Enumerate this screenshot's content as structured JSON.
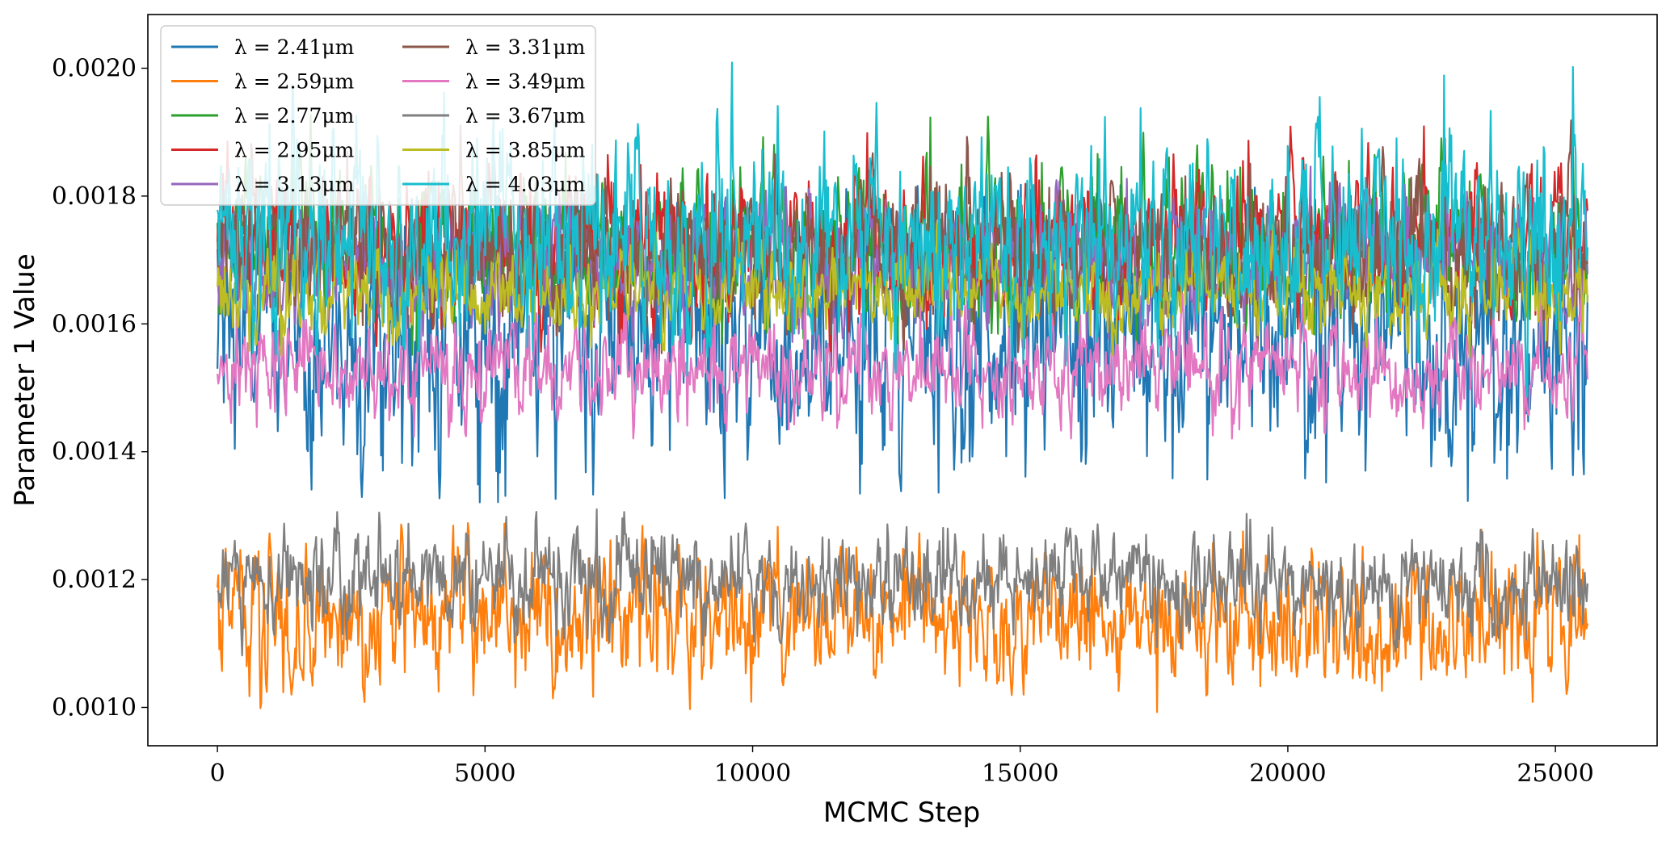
{
  "chart_data": {
    "type": "line",
    "title": "",
    "xlabel": "MCMC Step",
    "ylabel": "Parameter 1 Value",
    "xlim": [
      -1300,
      26900
    ],
    "ylim": [
      0.00094,
      0.002084
    ],
    "xticks": [
      0,
      5000,
      10000,
      15000,
      20000,
      25000
    ],
    "xtick_labels": [
      "0",
      "5000",
      "10000",
      "15000",
      "20000",
      "25000"
    ],
    "yticks": [
      0.001,
      0.0012,
      0.0014,
      0.0016,
      0.0018,
      0.002
    ],
    "ytick_labels": [
      "0.0010",
      "0.0012",
      "0.0014",
      "0.0016",
      "0.0018",
      "0.0020"
    ],
    "grid": false,
    "legend_position": "top-left",
    "legend_columns": 2,
    "n_steps": 25600,
    "series": [
      {
        "name": "λ = 2.41μm",
        "color": "#1f77b4",
        "mean": 0.001585,
        "sd": 0.0001,
        "range": [
          0.00132,
          0.00182
        ]
      },
      {
        "name": "λ = 2.59μm",
        "color": "#ff7f0e",
        "mean": 0.00114,
        "sd": 5.5e-05,
        "range": [
          0.00099,
          0.00129
        ]
      },
      {
        "name": "λ = 2.77μm",
        "color": "#2ca02c",
        "mean": 0.00172,
        "sd": 6e-05,
        "range": [
          0.00155,
          0.00193
        ]
      },
      {
        "name": "λ = 2.95μm",
        "color": "#d62728",
        "mean": 0.00172,
        "sd": 5.5e-05,
        "range": [
          0.00155,
          0.00191
        ]
      },
      {
        "name": "λ = 3.13μm",
        "color": "#9467bd",
        "mean": 0.0017,
        "sd": 5e-05,
        "range": [
          0.00156,
          0.00188
        ]
      },
      {
        "name": "λ = 3.31μm",
        "color": "#8c564b",
        "mean": 0.00172,
        "sd": 6e-05,
        "range": [
          0.00155,
          0.00192
        ]
      },
      {
        "name": "λ = 3.49μm",
        "color": "#e377c2",
        "mean": 0.00153,
        "sd": 4e-05,
        "range": [
          0.00142,
          0.00166
        ]
      },
      {
        "name": "λ = 3.67μm",
        "color": "#7f7f7f",
        "mean": 0.0012,
        "sd": 4e-05,
        "range": [
          0.00108,
          0.00136
        ]
      },
      {
        "name": "λ = 3.85μm",
        "color": "#bcbd22",
        "mean": 0.00165,
        "sd": 3.5e-05,
        "range": [
          0.00152,
          0.00176
        ]
      },
      {
        "name": "λ = 4.03μm",
        "color": "#17becf",
        "mean": 0.00173,
        "sd": 8e-05,
        "range": [
          0.00142,
          0.00201
        ]
      }
    ]
  }
}
